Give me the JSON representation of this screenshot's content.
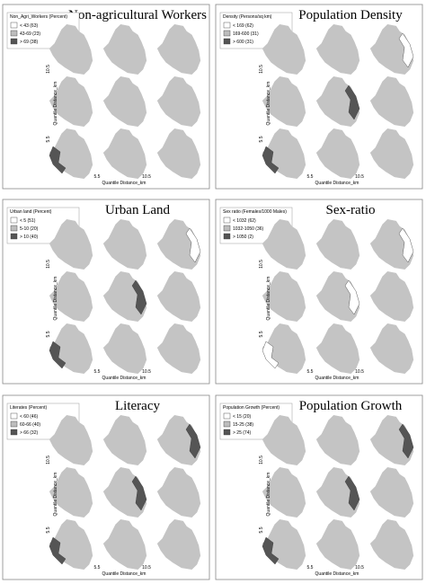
{
  "panels": [
    {
      "title": "Non-agricultural Workers",
      "legend": {
        "title": "Non_Agri_Workers (Percent)",
        "items": [
          "< 43 (63)",
          "43-69 (23)",
          "> 69 (38)"
        ]
      },
      "x_axis_label": "Quantile Distance_km",
      "y_axis_label": "Quantile Distance_km",
      "x_ticks": [
        "5.5",
        "10.5"
      ],
      "y_ticks": [
        "5.5",
        "10.5"
      ]
    },
    {
      "title": "Population Density",
      "legend": {
        "title": "Density (Persons/sq km)",
        "items": [
          "< 169 (62)",
          "169-600 (31)",
          "> 600 (31)"
        ]
      },
      "x_axis_label": "Quantile Distance_km",
      "y_axis_label": "Quantile Distance_km",
      "x_ticks": [
        "5.5",
        "10.5"
      ],
      "y_ticks": [
        "5.5",
        "10.5"
      ]
    },
    {
      "title": "Urban Land",
      "legend": {
        "title": "Urban land (Percent)",
        "items": [
          "< 5 (51)",
          "5-10 (20)",
          "> 10 (40)"
        ]
      },
      "x_axis_label": "Quantile Distance_km",
      "y_axis_label": "Quantile Distance_km",
      "x_ticks": [
        "5.5",
        "10.5"
      ],
      "y_ticks": [
        "5.5",
        "10.5"
      ]
    },
    {
      "title": "Sex-ratio",
      "legend": {
        "title": "Sex ratio (Females/1000 Males)",
        "items": [
          "< 1032 (62)",
          "1032-1050 (36)",
          "> 1050 (2)"
        ]
      },
      "x_axis_label": "Quantile Distance_km",
      "y_axis_label": "Quantile Distance_km",
      "x_ticks": [
        "5.5",
        "10.5"
      ],
      "y_ticks": [
        "5.5",
        "10.5"
      ]
    },
    {
      "title": "Literacy",
      "legend": {
        "title": "Literates (Percent)",
        "items": [
          "< 60 (46)",
          "60-66 (40)",
          "> 66 (32)"
        ]
      },
      "x_axis_label": "Quantile Distance_km",
      "y_axis_label": "Quantile Distance_km",
      "x_ticks": [
        "5.5",
        "10.5"
      ],
      "y_ticks": [
        "5.5",
        "10.5"
      ]
    },
    {
      "title": "Population Growth",
      "legend": {
        "title": "Population Growth (Percent)",
        "items": [
          "< 15 (20)",
          "15-25 (38)",
          "> 25 (74)"
        ]
      },
      "x_axis_label": "Quantile Distance_km",
      "y_axis_label": "Quantile Distance_km",
      "x_ticks": [
        "5.5",
        "10.5"
      ],
      "y_ticks": [
        "5.5",
        "10.5"
      ]
    }
  ]
}
